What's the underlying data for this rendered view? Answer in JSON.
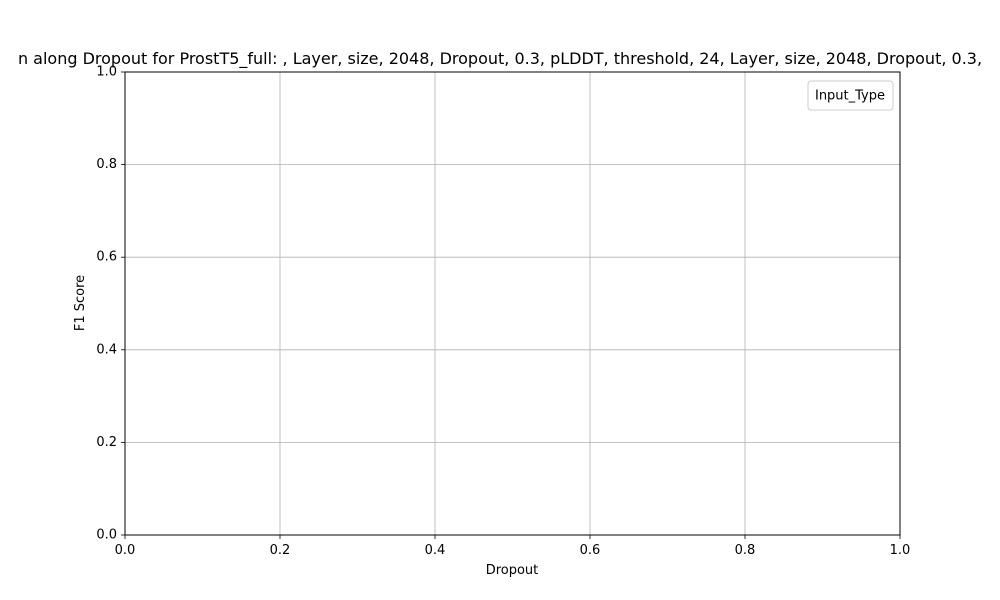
{
  "chart_data": {
    "type": "line",
    "title": "n along Dropout for ProstT5_full: , Layer, size, 2048, Dropout, 0.3, pLDDT, threshold, 24, Layer, size, 2048, Dropout, 0.3,",
    "xlabel": "Dropout",
    "ylabel": "F1 Score",
    "xlim": [
      0.0,
      1.0
    ],
    "ylim": [
      0.0,
      1.0
    ],
    "xticks": [
      0.0,
      0.2,
      0.4,
      0.6,
      0.8,
      1.0
    ],
    "yticks": [
      0.0,
      0.2,
      0.4,
      0.6,
      0.8,
      1.0
    ],
    "xtick_labels": [
      "0.0",
      "0.2",
      "0.4",
      "0.6",
      "0.8",
      "1.0"
    ],
    "ytick_labels": [
      "0.0",
      "0.2",
      "0.4",
      "0.6",
      "0.8",
      "1.0"
    ],
    "grid": true,
    "legend": {
      "title": "Input_Type",
      "placement": "top-right",
      "entries": []
    },
    "series": []
  },
  "colors": {
    "grid": "#b0b0b0",
    "axis": "#000000",
    "background": "#ffffff",
    "legend_border": "#cccccc"
  }
}
